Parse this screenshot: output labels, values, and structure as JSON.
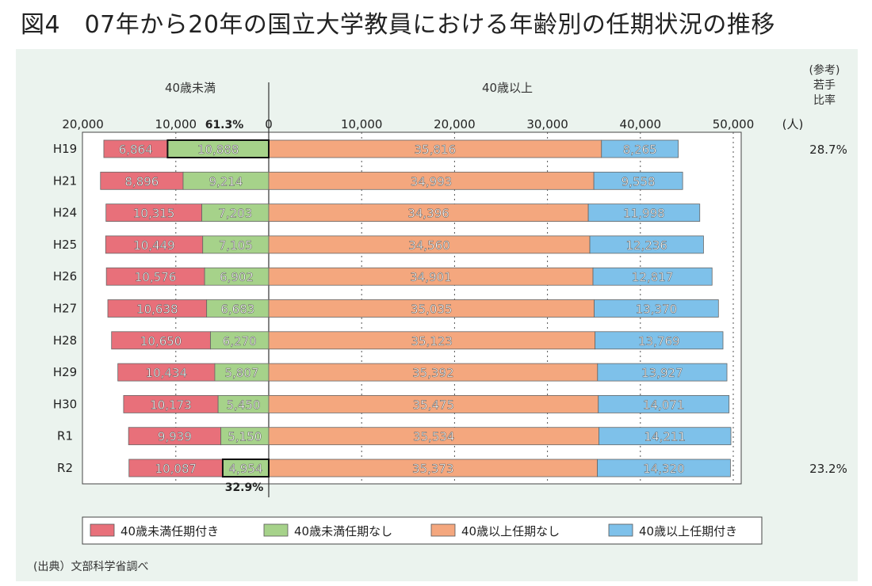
{
  "title": "図4　07年から20年の国立大学教員における年齢別の任期状況の推移",
  "chart_data": {
    "type": "bar",
    "stacked": true,
    "orientation": "horizontal",
    "unit": "(人)",
    "section_labels": {
      "left": "40歳未満",
      "right": "40歳以上"
    },
    "ref_header": [
      "(参考)",
      "若手",
      "比率"
    ],
    "categories": [
      "H19",
      "H21",
      "H24",
      "H25",
      "H26",
      "H27",
      "H28",
      "H29",
      "H30",
      "R1",
      "R2"
    ],
    "x_ticks": [
      "20,000",
      "10,000",
      "0",
      "10,000",
      "20,000",
      "30,000",
      "40,000",
      "50,000"
    ],
    "series": [
      {
        "name": "40歳未満任期付き",
        "color": "#e8707a",
        "side": "left",
        "values": [
          6864,
          8896,
          10315,
          10449,
          10576,
          10638,
          10650,
          10434,
          10173,
          9939,
          10087
        ],
        "labels": [
          "6,864",
          "8,896",
          "10,315",
          "10,449",
          "10,576",
          "10,638",
          "10,650",
          "10,434",
          "10,173",
          "9,939",
          "10,087"
        ]
      },
      {
        "name": "40歳未満任期なし",
        "color": "#a6d28a",
        "side": "left",
        "values": [
          10888,
          9214,
          7203,
          7105,
          6902,
          6683,
          6270,
          5807,
          5450,
          5150,
          4954
        ],
        "labels": [
          "10,888",
          "9,214",
          "7,203",
          "7,105",
          "6,902",
          "6,683",
          "6,270",
          "5,807",
          "5,450",
          "5,150",
          "4,954"
        ]
      },
      {
        "name": "40歳以上任期なし",
        "color": "#f4a77e",
        "side": "right",
        "values": [
          35816,
          34993,
          34396,
          34560,
          34901,
          35035,
          35123,
          35392,
          35475,
          35534,
          35373
        ],
        "labels": [
          "35,816",
          "34,993",
          "34,396",
          "34,560",
          "34,901",
          "35,035",
          "35,123",
          "35,392",
          "35,475",
          "35,534",
          "35,373"
        ]
      },
      {
        "name": "40歳以上任期付き",
        "color": "#7ec1ea",
        "side": "right",
        "values": [
          8265,
          9558,
          11998,
          12236,
          12817,
          13370,
          13769,
          13927,
          14071,
          14211,
          14320
        ],
        "labels": [
          "8,265",
          "9,558",
          "11,998",
          "12,236",
          "12,817",
          "13,370",
          "13,769",
          "13,927",
          "14,071",
          "14,211",
          "14,320"
        ]
      }
    ],
    "annotations": {
      "top": "61.3%",
      "bottom": "32.9%"
    },
    "ref_ratios": [
      "28.7%",
      "",
      "",
      "",
      "",
      "",
      "",
      "",
      "",
      "",
      "23.2%"
    ],
    "source": "(出典）文部科学省調べ"
  }
}
